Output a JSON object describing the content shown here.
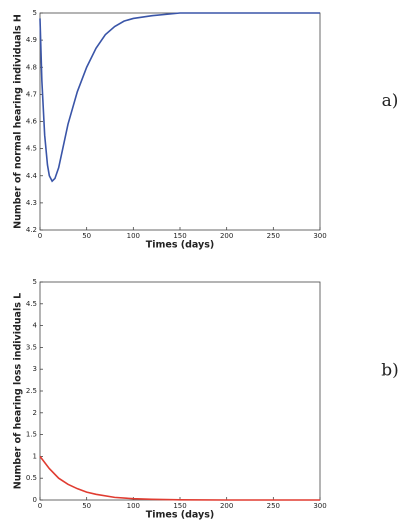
{
  "chart_data": [
    {
      "type": "line",
      "annotation": "a)",
      "xlabel": "Times (days)",
      "ylabel": "Number of normal hearing individuals H",
      "x": [
        0,
        2,
        5,
        8,
        10,
        13,
        16,
        20,
        25,
        30,
        40,
        50,
        60,
        70,
        80,
        90,
        100,
        120,
        150,
        200,
        250,
        300
      ],
      "values": [
        4.98,
        4.75,
        4.55,
        4.44,
        4.4,
        4.38,
        4.39,
        4.43,
        4.51,
        4.59,
        4.71,
        4.8,
        4.87,
        4.92,
        4.95,
        4.97,
        4.98,
        4.99,
        5.0,
        5.0,
        5.0,
        5.0
      ],
      "color": "#3a55a8",
      "xlim": [
        0,
        300
      ],
      "xticks": [
        0,
        50,
        100,
        150,
        200,
        250,
        300
      ],
      "ylim": [
        4.2,
        5
      ],
      "yticks": [
        4.2,
        4.3,
        4.4,
        4.5,
        4.6,
        4.7,
        4.8,
        4.9,
        5
      ]
    },
    {
      "type": "line",
      "annotation": "b)",
      "xlabel": "Times (days)",
      "ylabel": "Number of hearing loss individuals L",
      "x": [
        0,
        10,
        20,
        30,
        40,
        50,
        60,
        80,
        100,
        120,
        150,
        200,
        250,
        300
      ],
      "values": [
        1,
        0.72,
        0.5,
        0.36,
        0.26,
        0.18,
        0.13,
        0.06,
        0.03,
        0.015,
        0.005,
        0,
        0,
        0
      ],
      "color": "#e03c31",
      "xlim": [
        0,
        300
      ],
      "xticks": [
        0,
        50,
        100,
        150,
        200,
        250,
        300
      ],
      "ylim": [
        0,
        5
      ],
      "yticks": [
        0,
        0.5,
        1,
        1.5,
        2,
        2.5,
        3,
        3.5,
        4,
        4.5,
        5
      ]
    }
  ]
}
